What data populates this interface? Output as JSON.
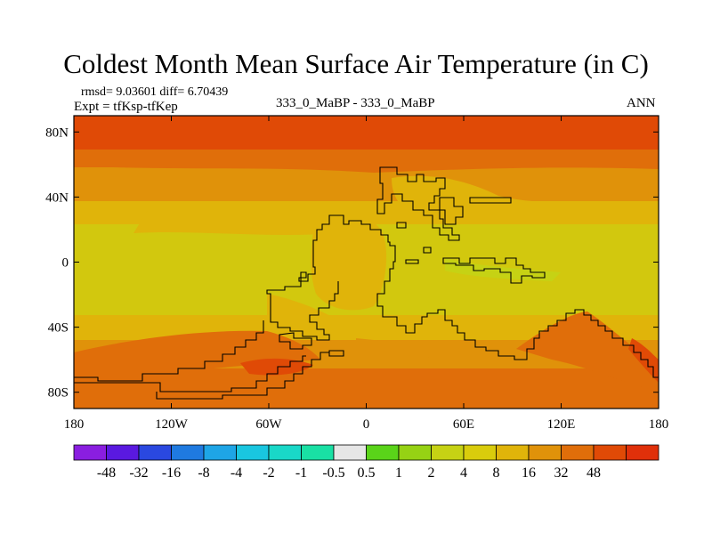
{
  "title": "Coldest Month Mean Surface Air Temperature (in C)",
  "stats": "rmsd= 9.03601 diff= 6.70439",
  "experiment": "Expt = tfKsp-tfKep",
  "center_label": "333_0_MaBP - 333_0_MaBP",
  "season": "ANN",
  "chart_data": {
    "type": "heatmap",
    "projection": "cylindrical equidistant",
    "lon_range": [
      -180,
      180
    ],
    "lat_range": [
      -90,
      90
    ],
    "x_ticks": [
      {
        "lon": -180,
        "label": "180"
      },
      {
        "lon": -120,
        "label": "120W"
      },
      {
        "lon": -60,
        "label": "60W"
      },
      {
        "lon": 0,
        "label": "0"
      },
      {
        "lon": 60,
        "label": "60E"
      },
      {
        "lon": 120,
        "label": "120E"
      },
      {
        "lon": 180,
        "label": "180"
      }
    ],
    "y_ticks": [
      {
        "lat": 80,
        "label": "80N"
      },
      {
        "lat": 40,
        "label": "40N"
      },
      {
        "lat": 0,
        "label": "0"
      },
      {
        "lat": -40,
        "label": "40S"
      },
      {
        "lat": -80,
        "label": "80S"
      }
    ],
    "contour_bands": [
      {
        "lat_from": 90,
        "lat_to": 68,
        "level": "32-48"
      },
      {
        "lat_from": 68,
        "lat_to": 54,
        "level": "16-32"
      },
      {
        "lat_from": 54,
        "lat_to": 36,
        "level": "8-16"
      },
      {
        "lat_from": 36,
        "lat_to": 20,
        "level": "4-8"
      },
      {
        "lat_from": 20,
        "lat_to": -35,
        "level": "2-4"
      },
      {
        "lat_from": -35,
        "lat_to": -52,
        "level": "4-8"
      },
      {
        "lat_from": -52,
        "lat_to": -70,
        "level": "8-16"
      },
      {
        "lat_from": -70,
        "lat_to": -90,
        "level": "16-32"
      }
    ],
    "colorbar": {
      "colors": [
        "#8a1ee0",
        "#5a19e0",
        "#2a48e0",
        "#1f7ae0",
        "#1ea5e6",
        "#19c6e0",
        "#19d8c8",
        "#19e0a4",
        "#e6e6e6",
        "#5ad419",
        "#96d214",
        "#c6d214",
        "#d9cc0c",
        "#e0b40a",
        "#e0920a",
        "#e06e0a",
        "#e04a06",
        "#e0300a"
      ],
      "labels": [
        "-48",
        "-32",
        "-16",
        "-8",
        "-4",
        "-2",
        "-1",
        "-0.5",
        "0.5",
        "1",
        "2",
        "4",
        "8",
        "16",
        "32",
        "48"
      ]
    }
  }
}
